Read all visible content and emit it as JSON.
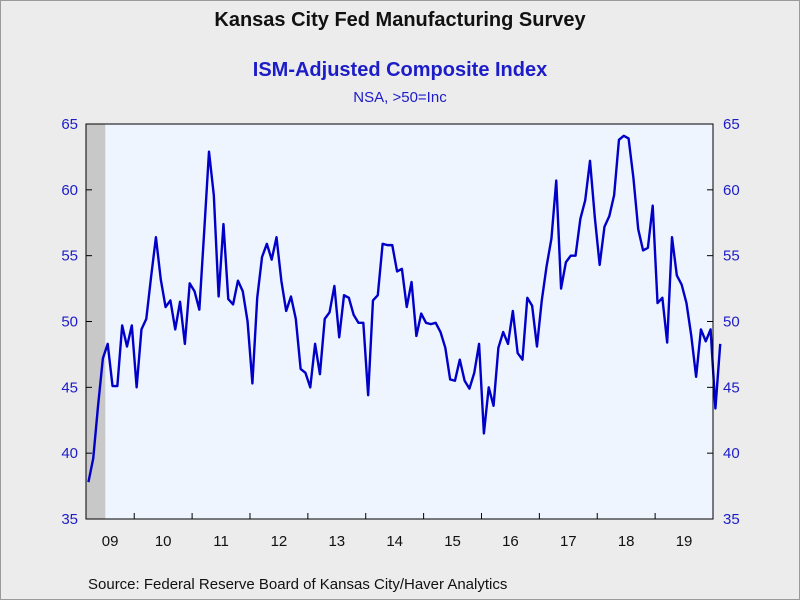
{
  "header": {
    "title": "Kansas City Fed Manufacturing Survey",
    "subtitle": "ISM-Adjusted Composite Index",
    "note": "NSA, >50=Inc"
  },
  "footer": {
    "source": "Source:  Federal Reserve Board of Kansas City/Haver Analytics"
  },
  "colors": {
    "series": "#0000c8",
    "plot_background": "#eef5ff",
    "recession_shade": "#c8c8c8",
    "axis_text": "#1c1cc8"
  },
  "chart_data": {
    "type": "line",
    "title": "Kansas City Fed Manufacturing Survey",
    "subtitle": "ISM-Adjusted Composite Index",
    "note": "NSA, >50=Inc",
    "xlabel": "",
    "ylabel": "",
    "ylim": [
      35,
      65
    ],
    "y_ticks": [
      35,
      40,
      45,
      50,
      55,
      60,
      65
    ],
    "y_axis_sides": [
      "left",
      "right"
    ],
    "x_tick_labels": [
      "09",
      "10",
      "11",
      "12",
      "13",
      "14",
      "15",
      "16",
      "17",
      "18",
      "19"
    ],
    "x_start": "2009-03",
    "x_end": "2019-12",
    "frequency": "monthly",
    "grid": false,
    "recession_shading": {
      "start": "2009-03",
      "end": "2009-06"
    },
    "series": [
      {
        "values": [
          37.8,
          39.6,
          43.6,
          47.2,
          48.3,
          45.1,
          45.1,
          49.7,
          48.1,
          49.7,
          45.0,
          49.4,
          50.2,
          53.4,
          56.4,
          53.2,
          51.1,
          51.6,
          49.4,
          51.5,
          48.3,
          52.9,
          52.3,
          50.9,
          56.8,
          62.9,
          59.6,
          51.9,
          57.4,
          51.7,
          51.3,
          53.1,
          52.3,
          50.0,
          45.3,
          51.8,
          54.9,
          55.9,
          54.7,
          56.4,
          53.1,
          50.8,
          51.9,
          50.2,
          46.4,
          46.1,
          45.0,
          48.3,
          46.0,
          50.2,
          50.7,
          52.7,
          48.8,
          52.0,
          51.8,
          50.5,
          49.9,
          49.9,
          44.4,
          51.6,
          52.0,
          55.9,
          55.8,
          55.8,
          53.8,
          54.0,
          51.1,
          53.0,
          48.9,
          50.6,
          49.9,
          49.8,
          49.9,
          49.2,
          48.0,
          45.6,
          45.5,
          47.1,
          45.5,
          44.9,
          46.1,
          48.3,
          41.5,
          45.0,
          43.6,
          48.0,
          49.2,
          48.3,
          50.8,
          47.6,
          47.1,
          51.8,
          51.2,
          48.1,
          51.6,
          54.2,
          56.3,
          60.7,
          52.5,
          54.5,
          55.0,
          55.0,
          57.8,
          59.2,
          62.2,
          57.9,
          54.3,
          57.2,
          58.0,
          59.6,
          63.8,
          64.1,
          63.9,
          60.9,
          57.0,
          55.4,
          55.6,
          58.8,
          51.4,
          51.8,
          48.4,
          56.4,
          53.5,
          52.8,
          51.4,
          48.9,
          45.8,
          49.4,
          48.5,
          49.4,
          43.4,
          48.3
        ]
      }
    ]
  }
}
